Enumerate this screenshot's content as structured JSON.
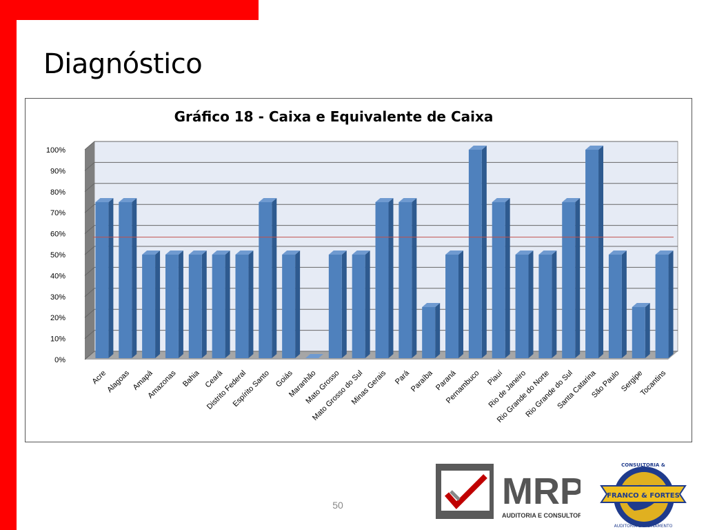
{
  "slide": {
    "title": "Diagnóstico",
    "page_number": "50"
  },
  "logos": {
    "mrp": {
      "name": "MRP",
      "subtitle": "AUDITORIA E CONSULTORIA"
    },
    "franco": {
      "top": "CONSULTORIA &",
      "name": "FRANCO & FORTES",
      "bottom": "AUDITORIA E TREINAMENTO"
    }
  },
  "colors": {
    "accent_red": "#ff0000",
    "bar_fill": "#4f81bd",
    "bar_side": "#2e5a8f",
    "bar_top": "#6f9ad0",
    "plot_bg": "#e6ebf5",
    "reference_line": "#c0504d"
  },
  "chart_data": {
    "type": "bar",
    "title": "Gráfico 18 - Caixa e Equivalente de Caixa",
    "categories": [
      "Acre",
      "Alagoas",
      "Amapá",
      "Amazonas",
      "Bahia",
      "Ceará",
      "Distrito Federal",
      "Espírito Santo",
      "Goiás",
      "Maranhão",
      "Mato Grosso",
      "Mato Grosso do Sul",
      "Minas Gerais",
      "Pará",
      "Paraíba",
      "Paraná",
      "Pernambuco",
      "Piauí",
      "Rio de Janeiro",
      "Rio Grande do Norte",
      "Rio Grande do Sul",
      "Santa Catarina",
      "São Paulo",
      "Sergipe",
      "Tocantins"
    ],
    "values": [
      75,
      75,
      50,
      50,
      50,
      50,
      50,
      75,
      50,
      0,
      50,
      50,
      75,
      75,
      25,
      50,
      100,
      75,
      50,
      50,
      75,
      100,
      50,
      25,
      50
    ],
    "y_ticks": [
      "0%",
      "10%",
      "20%",
      "30%",
      "40%",
      "50%",
      "60%",
      "70%",
      "80%",
      "90%",
      "100%"
    ],
    "ylim": [
      0,
      100
    ],
    "reference_line": 59,
    "grid": true,
    "three_d": true
  }
}
